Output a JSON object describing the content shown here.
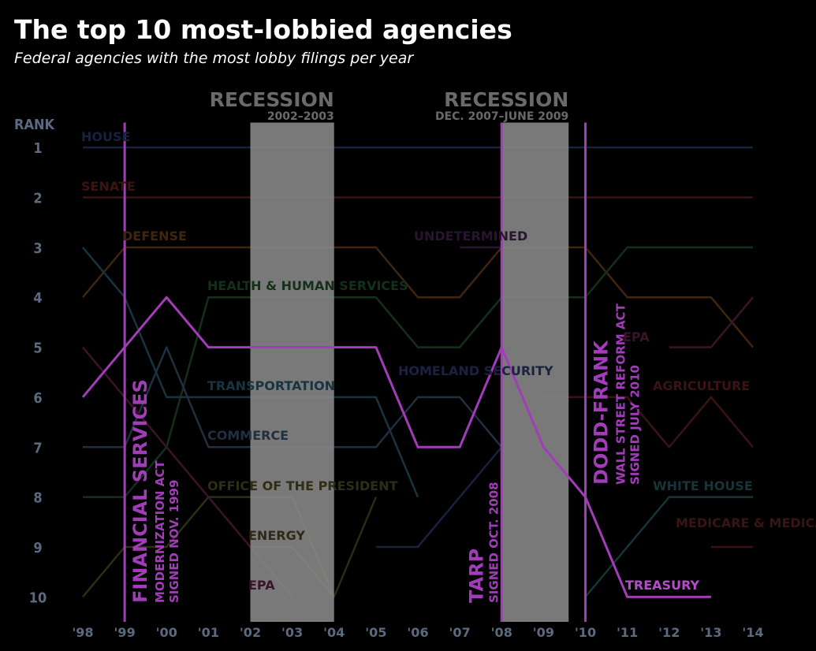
{
  "chart_data": {
    "type": "line",
    "title": "The top 10 most-lobbied agencies",
    "subtitle": "Federal agencies with the most lobby filings per year",
    "y_label": "RANK",
    "x": [
      1998,
      1999,
      2000,
      2001,
      2002,
      2003,
      2004,
      2005,
      2006,
      2007,
      2008,
      2009,
      2010,
      2011,
      2012,
      2013,
      2014
    ],
    "xlim": [
      1998,
      2014
    ],
    "xticks": [
      {
        "value": 1998,
        "label": "'98"
      },
      {
        "value": 1999,
        "label": "'99"
      },
      {
        "value": 2000,
        "label": "'00"
      },
      {
        "value": 2001,
        "label": "'01"
      },
      {
        "value": 2002,
        "label": "'02"
      },
      {
        "value": 2003,
        "label": "'03"
      },
      {
        "value": 2004,
        "label": "'04"
      },
      {
        "value": 2005,
        "label": "'05"
      },
      {
        "value": 2006,
        "label": "'06"
      },
      {
        "value": 2007,
        "label": "'07"
      },
      {
        "value": 2008,
        "label": "'08"
      },
      {
        "value": 2009,
        "label": "'09"
      },
      {
        "value": 2010,
        "label": "'10"
      },
      {
        "value": 2011,
        "label": "'11"
      },
      {
        "value": 2012,
        "label": "'12"
      },
      {
        "value": 2013,
        "label": "'13"
      },
      {
        "value": 2014,
        "label": "'14"
      }
    ],
    "ylim": [
      0.5,
      10.5
    ],
    "y_inverted": true,
    "yticks": [
      1,
      2,
      3,
      4,
      5,
      6,
      7,
      8,
      9,
      10
    ],
    "series": [
      {
        "name": "HOUSE",
        "color": "#18223e",
        "values": [
          1,
          1,
          1,
          1,
          1,
          1,
          1,
          1,
          1,
          1,
          1,
          1,
          1,
          1,
          1,
          1,
          1
        ]
      },
      {
        "name": "SENATE",
        "color": "#3a1410",
        "values": [
          2,
          2,
          2,
          2,
          2,
          2,
          2,
          2,
          2,
          2,
          2,
          2,
          2,
          2,
          2,
          2,
          2
        ]
      },
      {
        "name": "DEFENSE",
        "color": "#3e2610",
        "values": [
          4,
          3,
          3,
          3,
          3,
          3,
          3,
          3,
          4,
          4,
          3,
          3,
          3,
          4,
          4,
          4,
          5
        ]
      },
      {
        "name": "HEALTH & HUMAN SERVICES",
        "color": "#14301a",
        "values": [
          8,
          8,
          7,
          4,
          4,
          4,
          4,
          4,
          5,
          5,
          4,
          4,
          4,
          3,
          3,
          3,
          3
        ]
      },
      {
        "name": "TRANSPORTATION",
        "color": "#183440",
        "values": [
          3,
          4,
          6,
          6,
          6,
          6,
          6,
          6,
          8,
          null,
          null,
          null,
          null,
          null,
          null,
          null,
          null
        ]
      },
      {
        "name": "COMMERCE",
        "color": "#222f40",
        "values": [
          7,
          7,
          5,
          7,
          7,
          7,
          7,
          7,
          6,
          6,
          7,
          null,
          null,
          null,
          null,
          null,
          null
        ]
      },
      {
        "name": "OFFICE OF THE PRESIDENT",
        "color": "#2e2e14",
        "values": [
          10,
          9,
          9,
          8,
          8,
          8,
          10,
          null,
          null,
          null,
          null,
          null,
          null,
          null,
          null,
          null,
          null
        ]
      },
      {
        "name": "ENERGY",
        "color": "#2e2a14",
        "values": [
          null,
          null,
          null,
          null,
          9,
          9,
          10,
          8,
          null,
          null,
          null,
          null,
          null,
          null,
          null,
          null,
          null
        ]
      },
      {
        "name": "EPA",
        "color": "#3a1428",
        "values": [
          5,
          6,
          7,
          8,
          9,
          10,
          null,
          null,
          null,
          null,
          null,
          null,
          null,
          null,
          5,
          5,
          4
        ]
      },
      {
        "name": "HOMELAND SECURITY",
        "color": "#1a2240",
        "values": [
          null,
          null,
          null,
          null,
          null,
          null,
          null,
          9,
          9,
          8,
          7,
          null,
          null,
          null,
          null,
          null,
          null
        ]
      },
      {
        "name": "UNDETERMINED",
        "color": "#2a1430",
        "values": [
          null,
          null,
          null,
          null,
          null,
          null,
          null,
          null,
          null,
          3,
          3,
          null,
          null,
          null,
          null,
          null,
          null
        ]
      },
      {
        "name": "AGRICULTURE",
        "color": "#3a1414",
        "values": [
          null,
          null,
          null,
          null,
          null,
          null,
          null,
          null,
          null,
          null,
          null,
          6,
          6,
          6,
          7,
          6,
          7
        ]
      },
      {
        "name": "WHITE HOUSE",
        "color": "#173438",
        "values": [
          null,
          null,
          null,
          null,
          null,
          null,
          null,
          null,
          null,
          null,
          null,
          null,
          10,
          9,
          8,
          8,
          8
        ]
      },
      {
        "name": "MEDICARE & MEDICAID",
        "color": "#3a1414",
        "values": [
          null,
          null,
          null,
          null,
          null,
          null,
          null,
          null,
          null,
          null,
          null,
          null,
          null,
          null,
          null,
          9,
          9
        ]
      },
      {
        "name": "TREASURY",
        "color": "#a23cb8",
        "values": [
          6,
          5,
          4,
          5,
          5,
          5,
          5,
          5,
          7,
          7,
          5,
          7,
          8,
          10,
          10,
          10,
          null
        ]
      }
    ],
    "recessions": [
      {
        "label": "RECESSION",
        "period": "2002–2003",
        "start": 2002,
        "end": 2004
      },
      {
        "label": "RECESSION",
        "period": "DEC. 2007–JUNE 2009",
        "start": 2008,
        "end": 2009.6
      }
    ],
    "events": [
      {
        "x": 1999,
        "name": "FINANCIAL SERVICES",
        "act": "MODERNIZATION ACT",
        "signed": "SIGNED NOV. 1999"
      },
      {
        "x": 2008,
        "name": "TARP",
        "signed": "SIGNED OCT. 2008"
      },
      {
        "x": 2010,
        "name": "DODD-FRANK",
        "act": "WALL STREET REFORM ACT",
        "signed": "SIGNED JULY 2010"
      }
    ]
  }
}
